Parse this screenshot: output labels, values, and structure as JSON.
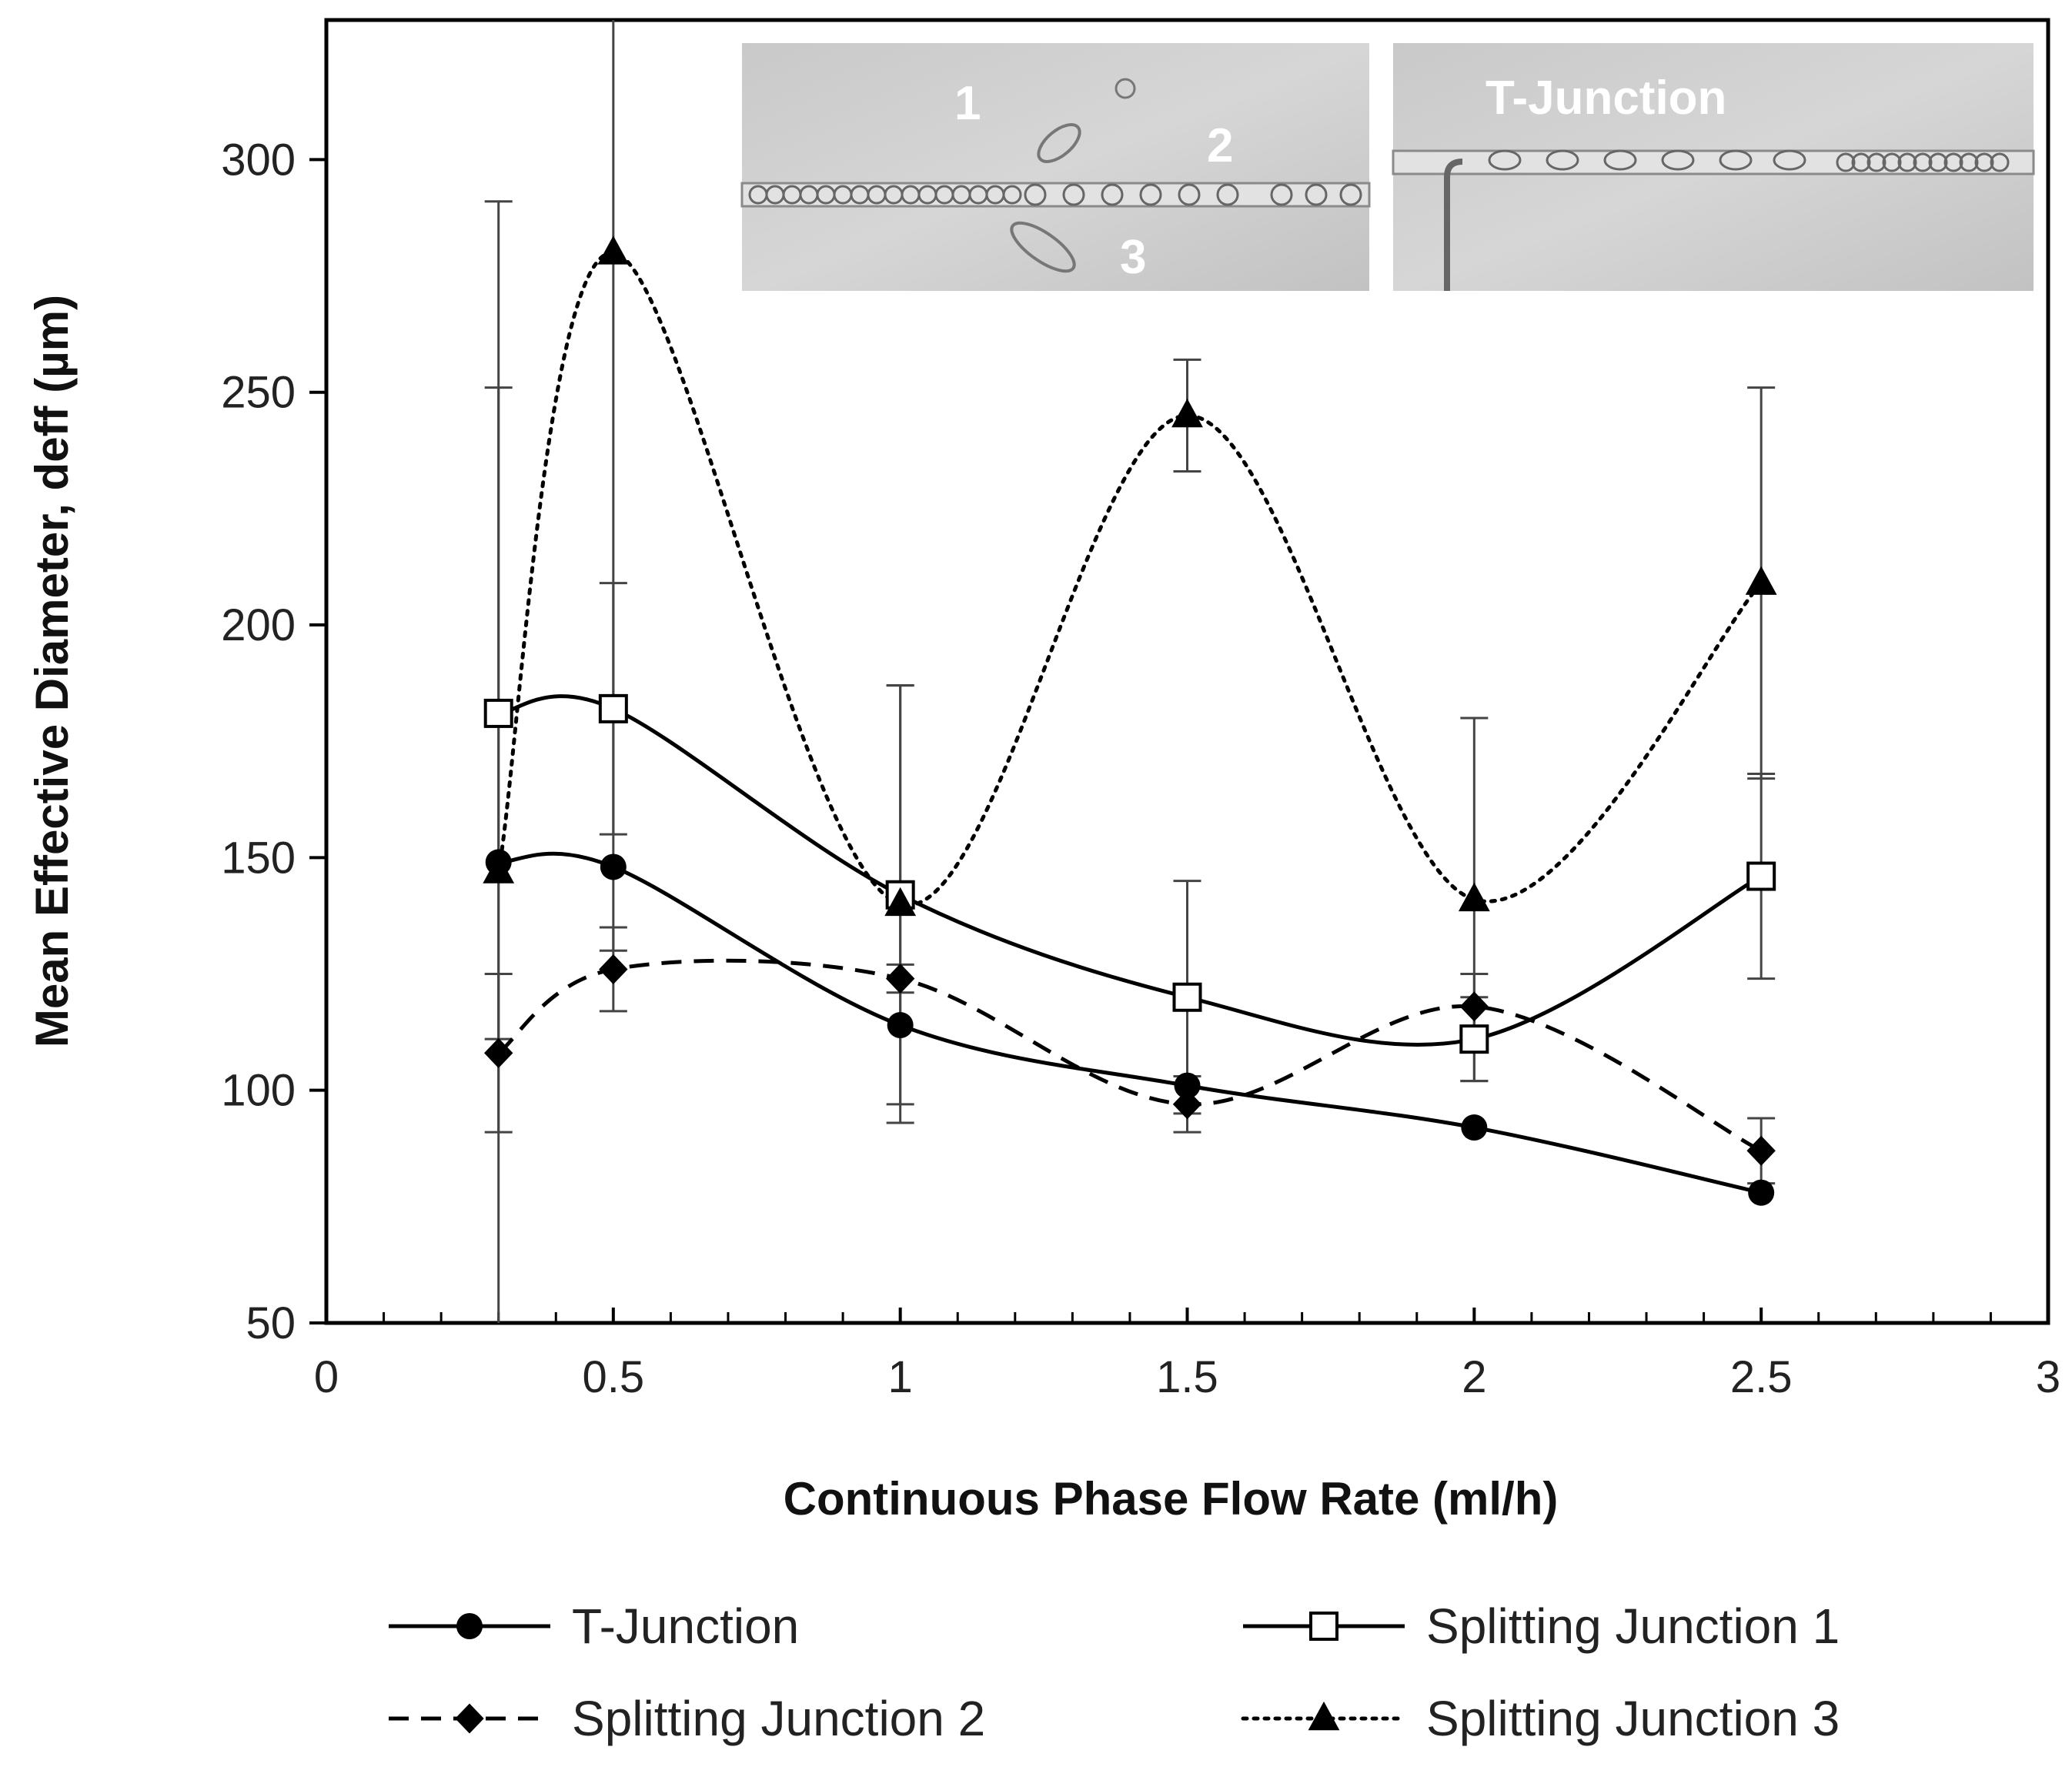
{
  "chart_data": {
    "type": "line",
    "title": "",
    "xlabel": "Continuous Phase Flow Rate (ml/h)",
    "ylabel": "Mean Effective Diameter, deff (µm)",
    "xlim": [
      0,
      3
    ],
    "ylim": [
      50,
      330
    ],
    "x_ticks": [
      0,
      0.5,
      1,
      1.5,
      2,
      2.5,
      3
    ],
    "x_tick_labels": [
      "0",
      "0.5",
      "1",
      "1.5",
      "2",
      "2.5",
      "3"
    ],
    "y_ticks": [
      50,
      100,
      150,
      200,
      250,
      300
    ],
    "y_tick_labels": [
      "50",
      "100",
      "150",
      "200",
      "250",
      "300"
    ],
    "grid": false,
    "legend_position": "bottom",
    "x": [
      0.3,
      0.5,
      1,
      1.5,
      2,
      2.5
    ],
    "series": [
      {
        "name": "T-Junction",
        "marker": "circle",
        "line_style": "solid",
        "values": [
          149,
          148,
          114,
          101,
          92,
          78
        ],
        "errors": [
          0,
          0,
          0,
          0,
          0,
          0
        ]
      },
      {
        "name": "Splitting Junction 1",
        "marker": "square-open",
        "line_style": "solid",
        "values": [
          181,
          182,
          142,
          120,
          111,
          146
        ],
        "errors": [
          70,
          27,
          45,
          25,
          9,
          22
        ]
      },
      {
        "name": "Splitting Junction 2",
        "marker": "diamond",
        "line_style": "dashed",
        "values": [
          108,
          126,
          124,
          97,
          118,
          87
        ],
        "errors": [
          17,
          9,
          3,
          6,
          7,
          7
        ]
      },
      {
        "name": "Splitting Junction 3",
        "marker": "triangle",
        "line_style": "dotted",
        "values": [
          147,
          280,
          140,
          245,
          141,
          209
        ],
        "errors": [
          144,
          150,
          47,
          12,
          39,
          42
        ]
      }
    ],
    "inset_images": [
      {
        "name": "splitting-junction-micrograph",
        "labels": [
          "1",
          "2",
          "3"
        ]
      },
      {
        "name": "t-junction-micrograph",
        "labels": [
          "T-Junction"
        ]
      }
    ]
  }
}
